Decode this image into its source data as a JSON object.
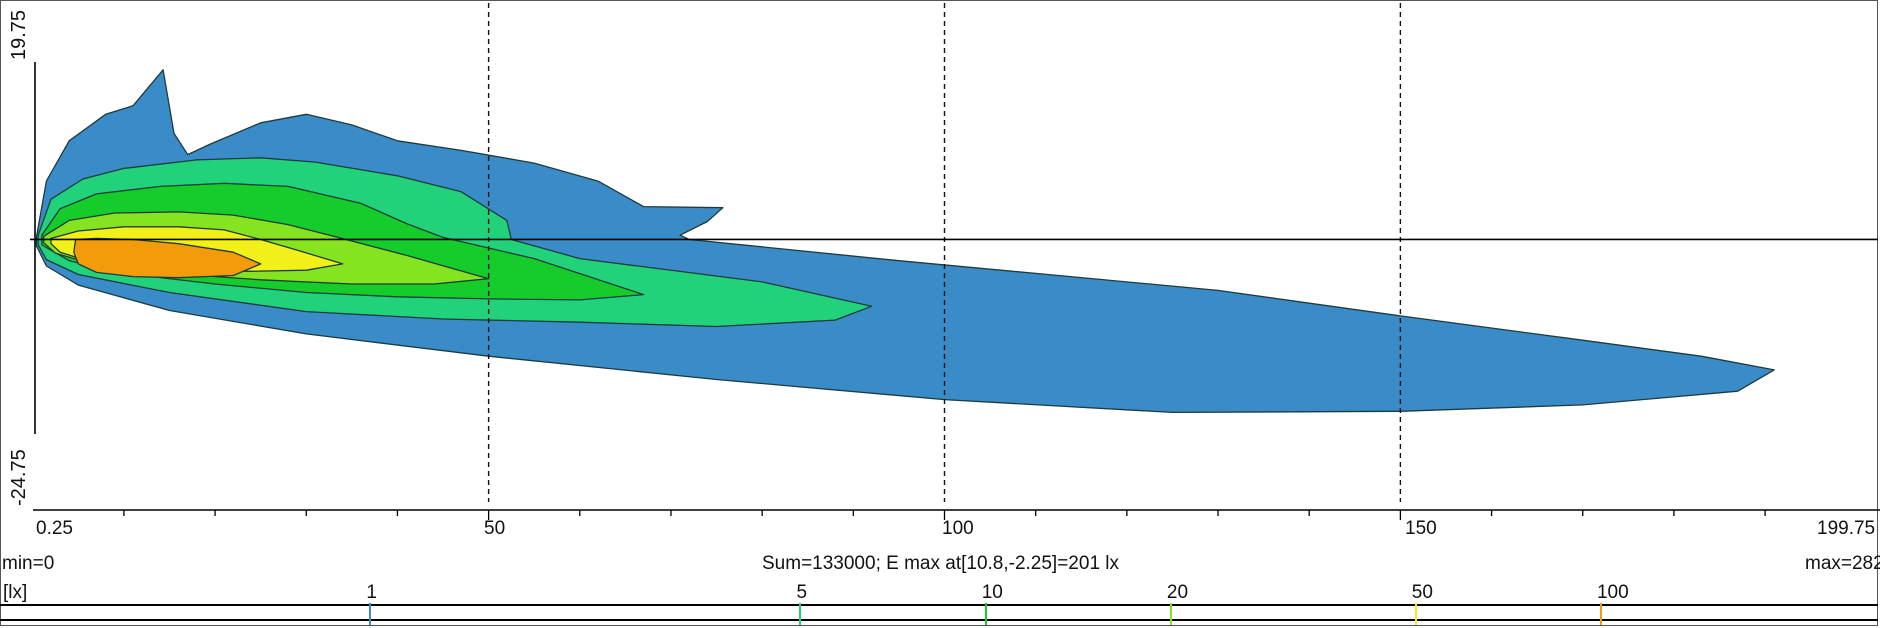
{
  "chart_data": {
    "type": "heatmap",
    "subtype": "isolux contour plot",
    "x_ticks": [
      "0.25",
      "50",
      "100",
      "150",
      "199.75"
    ],
    "xlim": [
      0.25,
      199.75
    ],
    "y_ticks": [
      "19.75",
      "-24.75"
    ],
    "ylim": [
      -24.75,
      19.75
    ],
    "grid": "dashed vertical lines at x = 50, 100, 150; solid horizontal line at y = 0",
    "min_label": "min=0",
    "max_label": "max=282",
    "summary": "Sum=133000; E max at[10.8,-2.25]=201 lx",
    "e_max": {
      "x": 10.8,
      "y": -2.25,
      "value": 201,
      "unit": "lx"
    },
    "legend_unit": "[lx]",
    "legend_levels": [
      {
        "label": "1",
        "value": 1,
        "color": "#3a8cc8"
      },
      {
        "label": "5",
        "value": 5,
        "color": "#22d27a"
      },
      {
        "label": "10",
        "value": 10,
        "color": "#15cc2a"
      },
      {
        "label": "20",
        "value": 20,
        "color": "#86e31f"
      },
      {
        "label": "50",
        "value": 50,
        "color": "#f1f119"
      },
      {
        "label": "100",
        "value": 100,
        "color": "#f39b0a"
      }
    ],
    "contours": [
      {
        "level": 1,
        "color": "#3a8cc8",
        "points": [
          [
            0.4,
            0.2
          ],
          [
            1.5,
            5.5
          ],
          [
            4,
            9.3
          ],
          [
            8,
            11.8
          ],
          [
            11,
            12.6
          ],
          [
            14.3,
            16
          ],
          [
            15.5,
            10
          ],
          [
            17,
            8
          ],
          [
            19.5,
            9
          ],
          [
            25,
            11
          ],
          [
            30,
            11.8
          ],
          [
            35,
            10.8
          ],
          [
            40,
            9.3
          ],
          [
            47,
            8.4
          ],
          [
            55,
            7.2
          ],
          [
            62,
            5.5
          ],
          [
            67,
            3.1
          ],
          [
            75.7,
            3
          ],
          [
            74,
            1.7
          ],
          [
            71,
            0.4
          ],
          [
            72,
            0
          ],
          [
            95,
            -2
          ],
          [
            110,
            -3.2
          ],
          [
            130,
            -4.8
          ],
          [
            150,
            -7.2
          ],
          [
            170,
            -9.5
          ],
          [
            183,
            -11
          ],
          [
            191,
            -12.3
          ],
          [
            187,
            -14.3
          ],
          [
            170,
            -15.6
          ],
          [
            150,
            -16.2
          ],
          [
            125,
            -16.3
          ],
          [
            100,
            -15.1
          ],
          [
            75,
            -13.2
          ],
          [
            50,
            -11
          ],
          [
            30,
            -8.9
          ],
          [
            15,
            -6.7
          ],
          [
            5,
            -4.3
          ],
          [
            1.5,
            -2.5
          ],
          [
            0.4,
            -0.6
          ]
        ]
      },
      {
        "level": 5,
        "color": "#22d27a",
        "points": [
          [
            0.6,
            0.4
          ],
          [
            2,
            3.8
          ],
          [
            5.5,
            5.7
          ],
          [
            10,
            6.7
          ],
          [
            18,
            7.5
          ],
          [
            25,
            7.7
          ],
          [
            31,
            7.3
          ],
          [
            40,
            6
          ],
          [
            47,
            4.5
          ],
          [
            52,
            1.8
          ],
          [
            52.5,
            0
          ],
          [
            60,
            -1.8
          ],
          [
            80,
            -4
          ],
          [
            92,
            -6.3
          ],
          [
            88,
            -7.6
          ],
          [
            75,
            -8.2
          ],
          [
            60,
            -7.8
          ],
          [
            45,
            -7.5
          ],
          [
            30,
            -6.8
          ],
          [
            15,
            -5
          ],
          [
            5,
            -3.3
          ],
          [
            1.5,
            -1.9
          ],
          [
            0.6,
            -0.5
          ]
        ]
      },
      {
        "level": 10,
        "color": "#15cc2a",
        "points": [
          [
            1,
            0.4
          ],
          [
            3,
            2.9
          ],
          [
            7,
            4.3
          ],
          [
            14,
            5
          ],
          [
            21,
            5.3
          ],
          [
            28,
            5
          ],
          [
            36,
            3.4
          ],
          [
            41,
            1.5
          ],
          [
            45,
            0.2
          ],
          [
            55,
            -1.8
          ],
          [
            67,
            -5.2
          ],
          [
            60,
            -5.7
          ],
          [
            50,
            -5.6
          ],
          [
            40,
            -5.4
          ],
          [
            30,
            -5
          ],
          [
            20,
            -4.2
          ],
          [
            10,
            -3.2
          ],
          [
            4,
            -2
          ],
          [
            1,
            -0.5
          ]
        ]
      },
      {
        "level": 20,
        "color": "#86e31f",
        "points": [
          [
            1.2,
            0.3
          ],
          [
            4,
            1.8
          ],
          [
            9,
            2.5
          ],
          [
            16,
            2.6
          ],
          [
            22,
            2.3
          ],
          [
            28,
            1.4
          ],
          [
            33,
            0.3
          ],
          [
            41,
            -1.5
          ],
          [
            50,
            -3.7
          ],
          [
            44,
            -4.2
          ],
          [
            35,
            -4.2
          ],
          [
            25,
            -3.8
          ],
          [
            15,
            -3.2
          ],
          [
            7,
            -2.4
          ],
          [
            2.5,
            -1.3
          ],
          [
            1.2,
            -0.3
          ]
        ]
      },
      {
        "level": 50,
        "color": "#f1f119",
        "points": [
          [
            2,
            0.1
          ],
          [
            5,
            0.8
          ],
          [
            10,
            1.2
          ],
          [
            16,
            1.2
          ],
          [
            21,
            0.9
          ],
          [
            25,
            0
          ],
          [
            29,
            -1
          ],
          [
            34,
            -2.3
          ],
          [
            30,
            -2.9
          ],
          [
            24,
            -3
          ],
          [
            18,
            -2.9
          ],
          [
            12,
            -2.6
          ],
          [
            6,
            -2
          ],
          [
            3,
            -1.2
          ],
          [
            2,
            -0.4
          ]
        ]
      },
      {
        "level": 100,
        "color": "#f39b0a",
        "points": [
          [
            4.7,
            0
          ],
          [
            7,
            0.1
          ],
          [
            11,
            0
          ],
          [
            16,
            -0.4
          ],
          [
            22,
            -1.2
          ],
          [
            25,
            -2.3
          ],
          [
            22,
            -3.4
          ],
          [
            16,
            -3.6
          ],
          [
            11,
            -3.5
          ],
          [
            7,
            -3.1
          ],
          [
            5,
            -2.3
          ],
          [
            4.5,
            -1.2
          ]
        ]
      }
    ]
  }
}
